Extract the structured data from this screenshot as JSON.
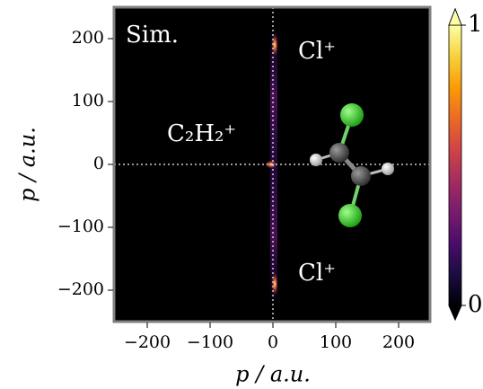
{
  "chart_data": {
    "type": "heatmap",
    "xlabel": "p / a.u.",
    "ylabel": "p / a.u.",
    "xlim": [
      -250,
      250
    ],
    "ylim": [
      -250,
      250
    ],
    "xticks": [
      {
        "value": -200,
        "label": "−200"
      },
      {
        "value": -100,
        "label": "−100"
      },
      0,
      100,
      200
    ],
    "yticks": [
      {
        "value": -200,
        "label": "−200"
      },
      {
        "value": -100,
        "label": "−100"
      },
      0,
      100,
      200
    ],
    "colormap": "inferno",
    "clim": [
      0,
      1
    ],
    "cticks": [
      0,
      1
    ],
    "spots": [
      {
        "x": 3,
        "y": 190,
        "value": 1
      },
      {
        "x": 3,
        "y": -190,
        "value": 1
      },
      {
        "x": -3,
        "y": 0,
        "value": 1
      }
    ],
    "annotations": [
      "Sim.",
      "Cl⁺",
      "C₂H₂⁺",
      "Cl⁺"
    ]
  }
}
